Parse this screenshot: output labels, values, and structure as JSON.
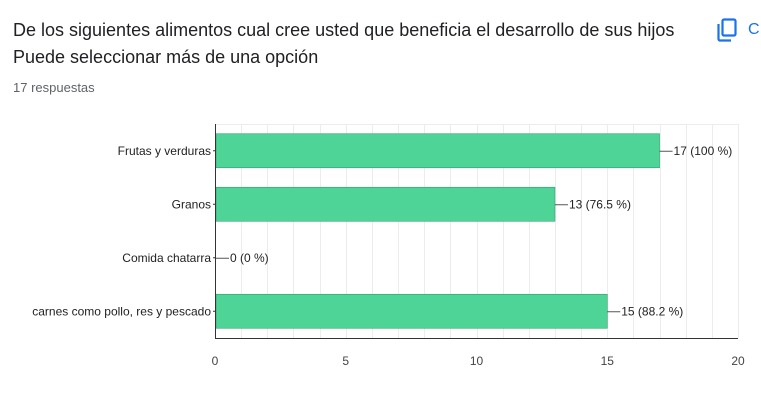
{
  "question": {
    "title_line1": "De los siguientes alimentos cual cree usted que beneficia el desarrollo de sus hijos",
    "title_line2": "Puede seleccionar más de una opción",
    "responses": "17 respuestas",
    "copy_label": "C"
  },
  "colors": {
    "bar": "#4fd497",
    "grid": "#ececec",
    "axis": "#333333",
    "accent": "#1a73e8"
  },
  "icons": {
    "copy": "copy-icon"
  },
  "chart_data": {
    "type": "bar",
    "orientation": "horizontal",
    "categories": [
      "Frutas y verduras",
      "Granos",
      "Comida chatarra",
      "carnes como pollo, res y pescado"
    ],
    "values": [
      17,
      13,
      0,
      15
    ],
    "data_labels": [
      "17 (100 %)",
      "13 (76.5 %)",
      "0 (0 %)",
      "15 (88.2 %)"
    ],
    "xlim": [
      0,
      20
    ],
    "xticks": [
      0,
      5,
      10,
      15,
      20
    ],
    "grid": true,
    "legend": "none"
  }
}
